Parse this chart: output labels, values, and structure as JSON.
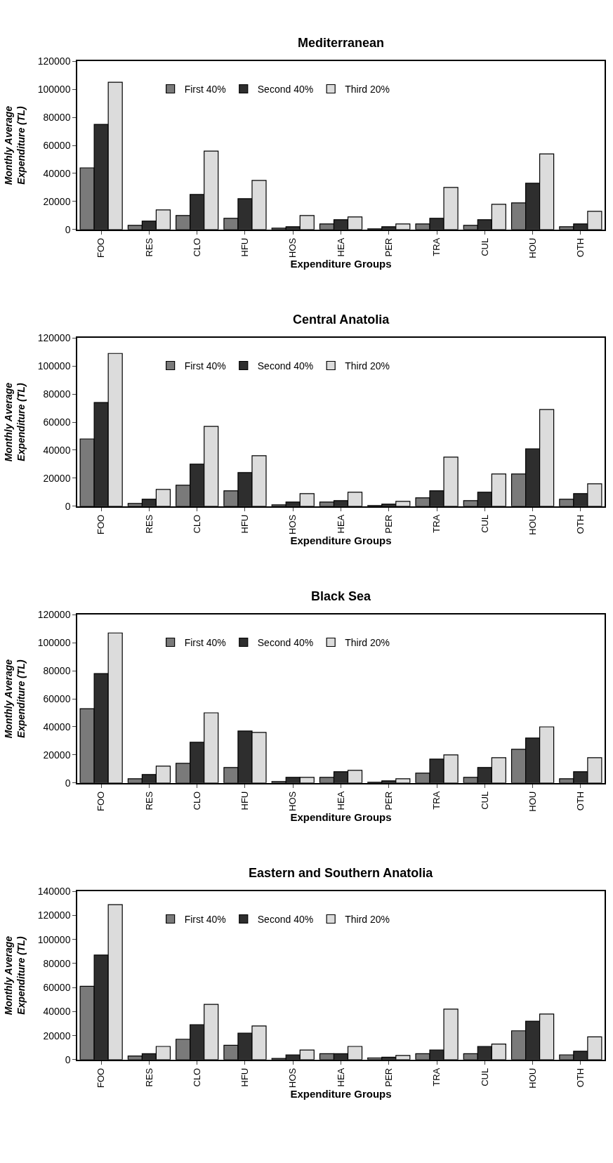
{
  "chart_data": [
    {
      "type": "bar",
      "title": "Mediterranean",
      "xlabel": "Expenditure Groups",
      "ylabel": "Monthly Average\nExpenditure (TL)",
      "categories": [
        "FOO",
        "RES",
        "CLO",
        "HFU",
        "HOS",
        "HEA",
        "PER",
        "TRA",
        "CUL",
        "HOU",
        "OTH"
      ],
      "ylim": [
        0,
        120000
      ],
      "yticks": [
        0,
        20000,
        40000,
        60000,
        80000,
        100000,
        120000
      ],
      "legend": "top",
      "series": [
        {
          "name": "First 40%",
          "color": "#7a7a7a",
          "values": [
            44000,
            3000,
            10000,
            8000,
            1000,
            4000,
            500,
            4000,
            3000,
            19000,
            2000
          ]
        },
        {
          "name": "Second 40%",
          "color": "#2e2e2e",
          "values": [
            75000,
            6000,
            25000,
            22000,
            2000,
            7000,
            2000,
            8000,
            7000,
            33000,
            4000
          ]
        },
        {
          "name": "Third 20%",
          "color": "#dcdcdc",
          "values": [
            105000,
            14000,
            56000,
            35000,
            10000,
            9000,
            4000,
            30000,
            18000,
            54000,
            13000
          ]
        }
      ]
    },
    {
      "type": "bar",
      "title": "Central Anatolia",
      "xlabel": "Expenditure Groups",
      "ylabel": "Monthly Average\nExpenditure (TL)",
      "categories": [
        "FOO",
        "RES",
        "CLO",
        "HFU",
        "HOS",
        "HEA",
        "PER",
        "TRA",
        "CUL",
        "HOU",
        "OTH"
      ],
      "ylim": [
        0,
        120000
      ],
      "yticks": [
        0,
        20000,
        40000,
        60000,
        80000,
        100000,
        120000
      ],
      "legend": "top",
      "series": [
        {
          "name": "First 40%",
          "color": "#7a7a7a",
          "values": [
            48000,
            2000,
            15000,
            11000,
            1000,
            3000,
            500,
            6000,
            4000,
            23000,
            5000
          ]
        },
        {
          "name": "Second 40%",
          "color": "#2e2e2e",
          "values": [
            74000,
            5000,
            30000,
            24000,
            3000,
            4000,
            1500,
            11000,
            10000,
            41000,
            9000
          ]
        },
        {
          "name": "Third 20%",
          "color": "#dcdcdc",
          "values": [
            109000,
            12000,
            57000,
            36000,
            9000,
            10000,
            3500,
            35000,
            23000,
            69000,
            16000
          ]
        }
      ]
    },
    {
      "type": "bar",
      "title": "Black Sea",
      "xlabel": "Expenditure Groups",
      "ylabel": "Monthly Average\nExpenditure (TL)",
      "categories": [
        "FOO",
        "RES",
        "CLO",
        "HFU",
        "HOS",
        "HEA",
        "PER",
        "TRA",
        "CUL",
        "HOU",
        "OTH"
      ],
      "ylim": [
        0,
        120000
      ],
      "yticks": [
        0,
        20000,
        40000,
        60000,
        80000,
        100000,
        120000
      ],
      "legend": "top",
      "series": [
        {
          "name": "First 40%",
          "color": "#7a7a7a",
          "values": [
            53000,
            3000,
            14000,
            11000,
            1000,
            4000,
            500,
            7000,
            4000,
            24000,
            3000
          ]
        },
        {
          "name": "Second 40%",
          "color": "#2e2e2e",
          "values": [
            78000,
            6000,
            29000,
            37000,
            4000,
            8000,
            1500,
            17000,
            11000,
            32000,
            8000
          ]
        },
        {
          "name": "Third 20%",
          "color": "#dcdcdc",
          "values": [
            107000,
            12000,
            50000,
            36000,
            4000,
            9000,
            3000,
            20000,
            18000,
            40000,
            18000
          ]
        }
      ]
    },
    {
      "type": "bar",
      "title": "Eastern and Southern Anatolia",
      "xlabel": "Expenditure Groups",
      "ylabel": "Monthly Average\nExpenditure (TL)",
      "categories": [
        "FOO",
        "RES",
        "CLO",
        "HFU",
        "HOS",
        "HEA",
        "PER",
        "TRA",
        "CUL",
        "HOU",
        "OTH"
      ],
      "ylim": [
        0,
        140000
      ],
      "yticks": [
        0,
        20000,
        40000,
        60000,
        80000,
        100000,
        120000,
        140000
      ],
      "legend": "top",
      "series": [
        {
          "name": "First 40%",
          "color": "#7a7a7a",
          "values": [
            61000,
            3000,
            17000,
            12000,
            1000,
            5000,
            1500,
            5000,
            5000,
            24000,
            4000
          ]
        },
        {
          "name": "Second 40%",
          "color": "#2e2e2e",
          "values": [
            87000,
            5000,
            29000,
            22000,
            4000,
            5000,
            2000,
            8000,
            11000,
            32000,
            7000
          ]
        },
        {
          "name": "Third 20%",
          "color": "#dcdcdc",
          "values": [
            129000,
            11000,
            46000,
            28000,
            8000,
            11000,
            3500,
            42000,
            13000,
            38000,
            19000
          ]
        }
      ]
    }
  ]
}
